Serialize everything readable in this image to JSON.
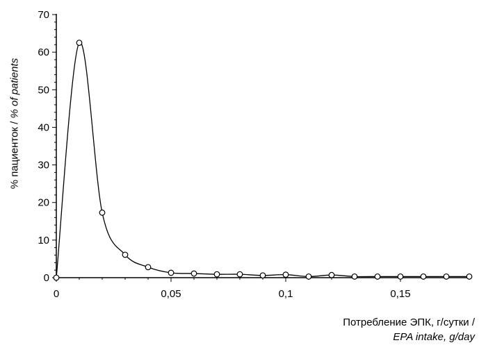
{
  "chart_data": {
    "type": "line",
    "title": "",
    "xlabel_ru": "Потребление ЭПК, г/сутки /",
    "xlabel_en": "EPA intake, g/day",
    "ylabel_ru": "% пациенток / ",
    "ylabel_en": "% of patients",
    "xlim": [
      0,
      0.18
    ],
    "ylim": [
      0,
      70
    ],
    "x_ticks": [
      0,
      0.05,
      0.1,
      0.15
    ],
    "x_tick_labels": [
      "0",
      "0,05",
      "0,1",
      "0,15"
    ],
    "y_ticks": [
      0,
      10,
      20,
      30,
      40,
      50,
      60,
      70
    ],
    "y_tick_labels": [
      "0",
      "10",
      "20",
      "30",
      "40",
      "50",
      "60",
      "70"
    ],
    "grid": false,
    "legend": "none",
    "series": [
      {
        "x": [
          0,
          0.01,
          0.02,
          0.03,
          0.04,
          0.05,
          0.06,
          0.07,
          0.08,
          0.09,
          0.1,
          0.11,
          0.12,
          0.13,
          0.14,
          0.15,
          0.16,
          0.17,
          0.18
        ],
        "y": [
          0,
          62.5,
          17.3,
          6.1,
          2.8,
          1.3,
          1.1,
          0.9,
          0.9,
          0.6,
          0.8,
          0.3,
          0.7,
          0.3,
          0.3,
          0.3,
          0.3,
          0.3,
          0.3
        ]
      }
    ],
    "line_color": "#000000",
    "marker_fill": "#ffffff"
  }
}
